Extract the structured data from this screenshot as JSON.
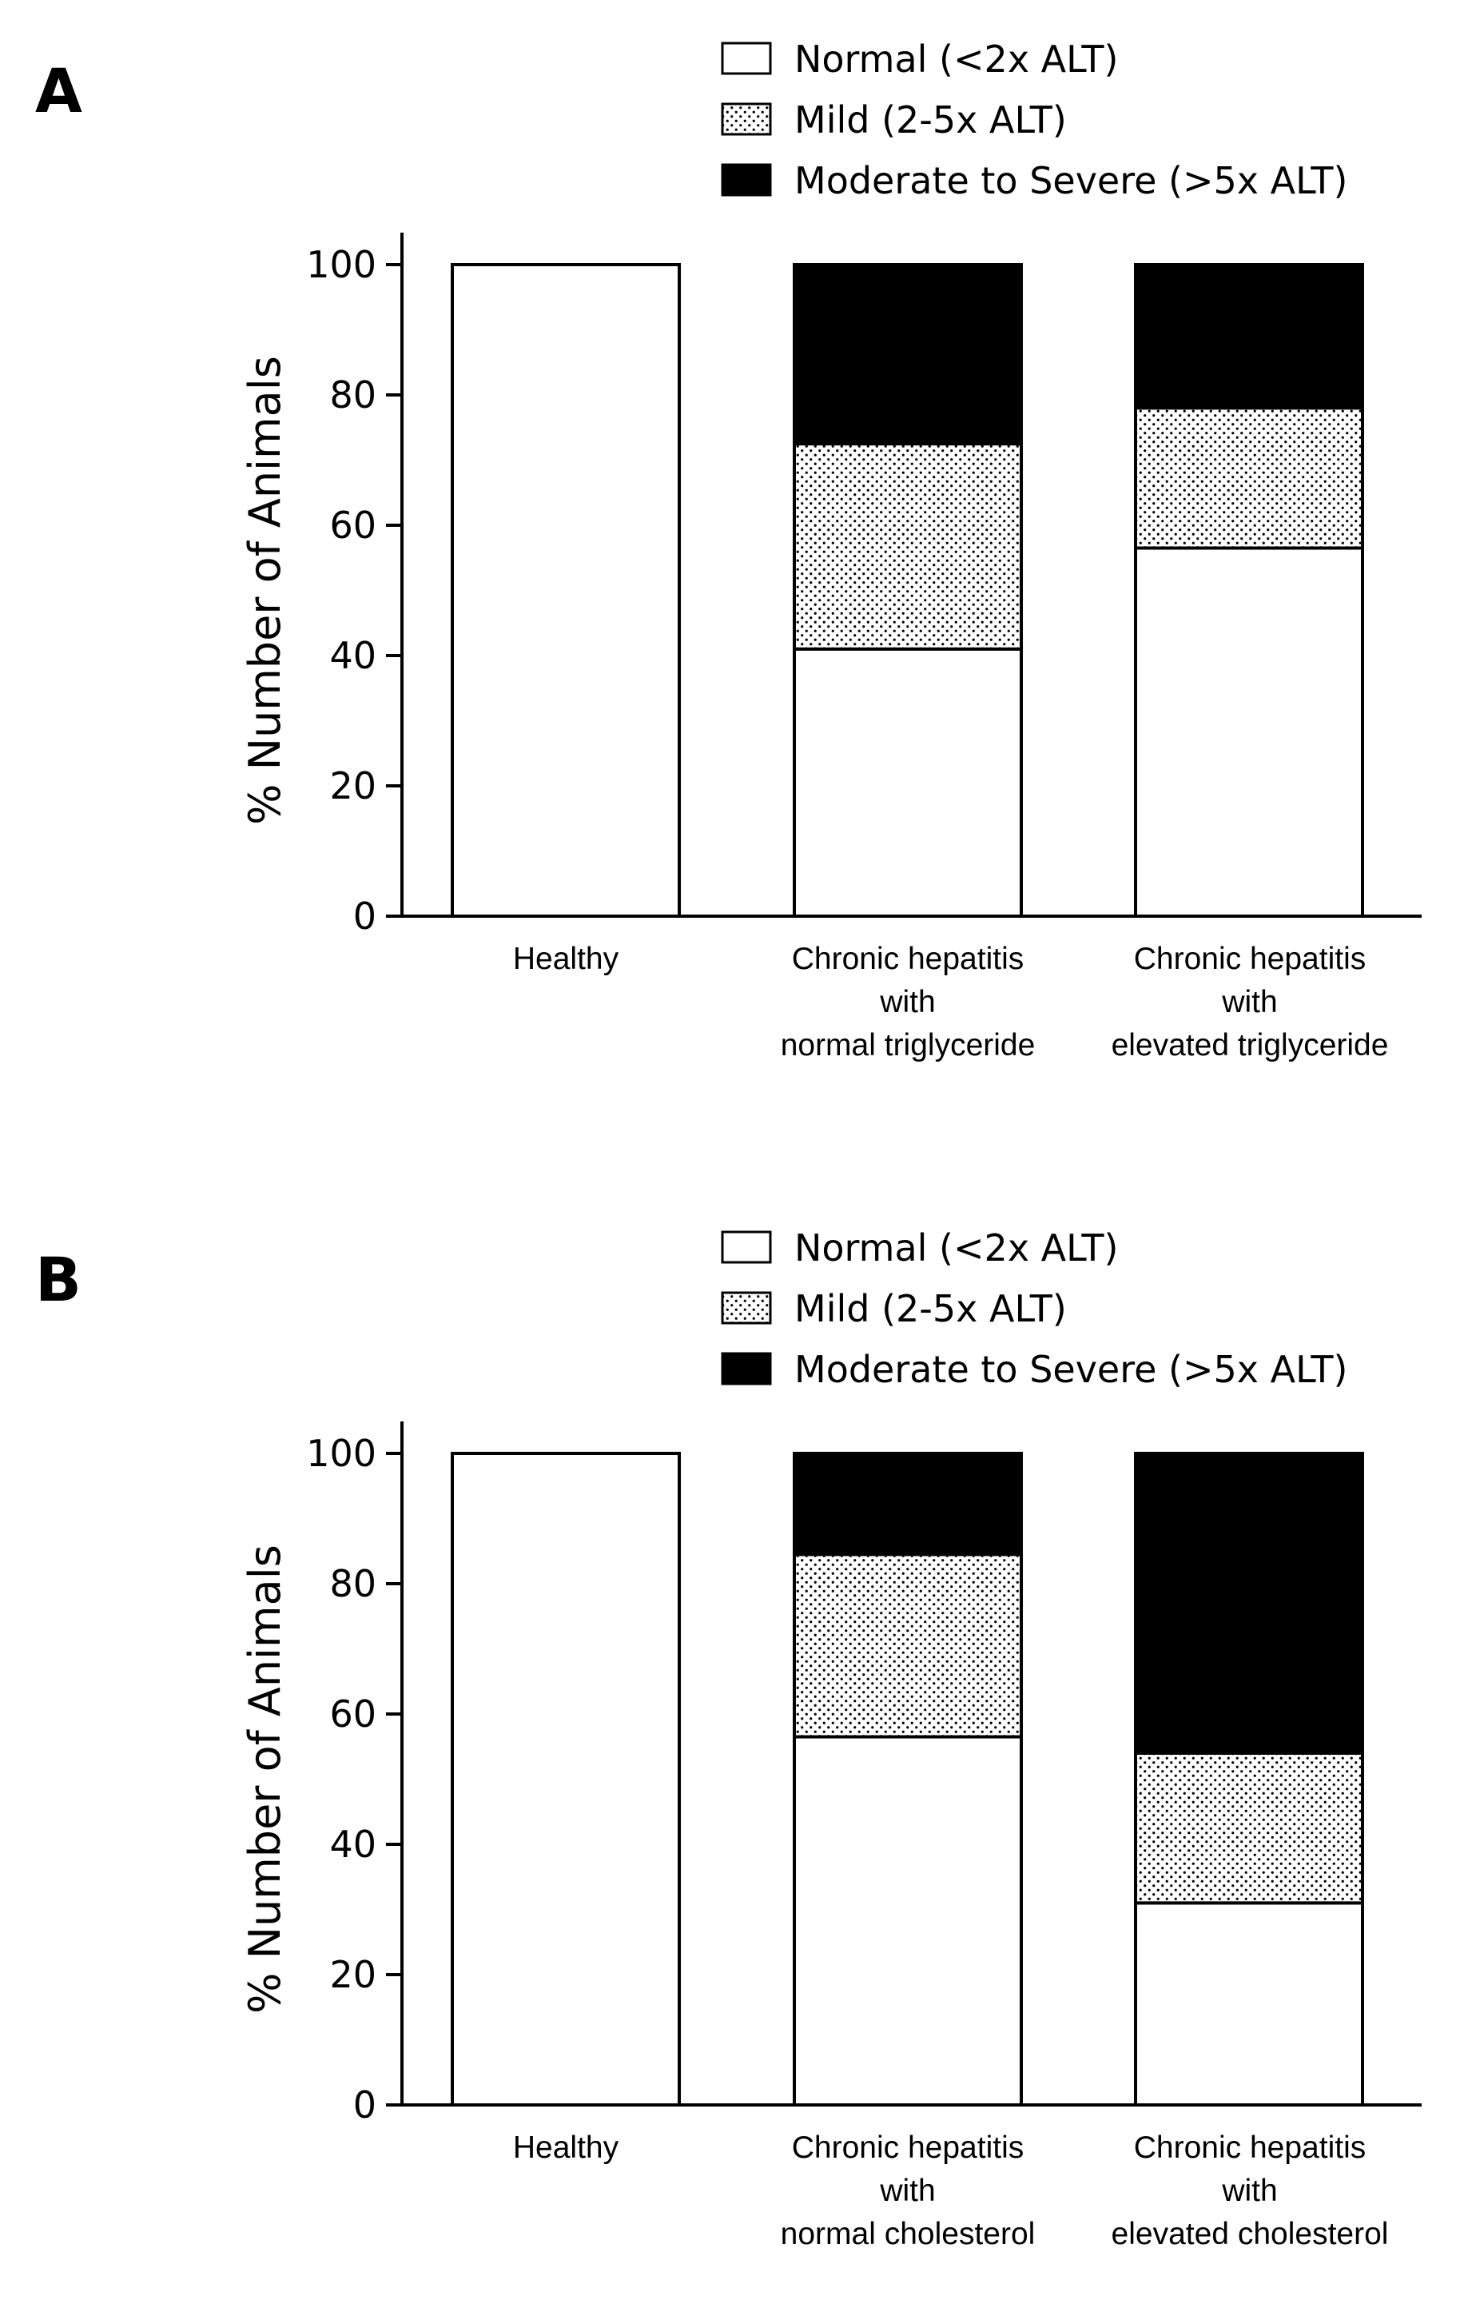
{
  "colors": {
    "ink": "#000000",
    "paper": "#ffffff"
  },
  "chart_data": [
    {
      "type": "bar",
      "stacked": true,
      "panel_label": "A",
      "legend": [
        {
          "name": "Normal (<2x ALT)",
          "fill": "white"
        },
        {
          "name": "Mild (2-5x ALT)",
          "fill": "dotted"
        },
        {
          "name": "Moderate to Severe (>5x ALT)",
          "fill": "black"
        }
      ],
      "legend_placement": "top-right",
      "categories": [
        [
          "Healthy"
        ],
        [
          "Chronic hepatitis",
          "with",
          "normal triglyceride"
        ],
        [
          "Chronic hepatitis",
          "with",
          "elevated triglyceride"
        ]
      ],
      "series": [
        {
          "name": "Normal (<2x ALT)",
          "values": [
            100,
            41,
            56.5
          ]
        },
        {
          "name": "Mild (2-5x ALT)",
          "values": [
            0,
            31.5,
            21.5
          ]
        },
        {
          "name": "Moderate to Severe (>5x ALT)",
          "values": [
            0,
            27.5,
            22
          ]
        }
      ],
      "ylabel": "% Number of  Animals",
      "xlabel": "",
      "ylim": [
        0,
        100
      ],
      "yticks": [
        0,
        20,
        40,
        60,
        80,
        100
      ],
      "grid": false
    },
    {
      "type": "bar",
      "stacked": true,
      "panel_label": "B",
      "legend": [
        {
          "name": "Normal (<2x ALT)",
          "fill": "white"
        },
        {
          "name": "Mild (2-5x ALT)",
          "fill": "dotted"
        },
        {
          "name": "Moderate to Severe (>5x ALT)",
          "fill": "black"
        }
      ],
      "legend_placement": "top-right",
      "categories": [
        [
          "Healthy"
        ],
        [
          "Chronic hepatitis",
          "with",
          "normal cholesterol"
        ],
        [
          "Chronic hepatitis",
          "with",
          "elevated cholesterol"
        ]
      ],
      "series": [
        {
          "name": "Normal (<2x ALT)",
          "values": [
            100,
            56.5,
            31
          ]
        },
        {
          "name": "Mild (2-5x ALT)",
          "values": [
            0,
            28,
            23
          ]
        },
        {
          "name": "Moderate to Severe (>5x ALT)",
          "values": [
            0,
            15.5,
            46
          ]
        }
      ],
      "ylabel": "% Number of  Animals",
      "xlabel": "",
      "ylim": [
        0,
        100
      ],
      "yticks": [
        0,
        20,
        40,
        60,
        80,
        100
      ],
      "grid": false
    }
  ]
}
